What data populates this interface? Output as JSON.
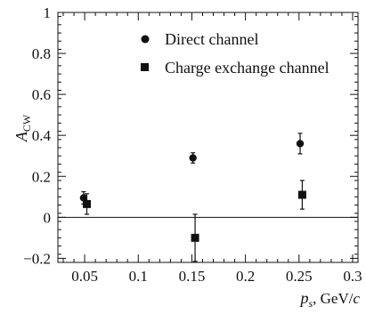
{
  "chart_data": {
    "type": "scatter",
    "xlabel": {
      "symbol": "p",
      "subscript": "s",
      "unit": ", GeV/",
      "unit_italic": "c"
    },
    "ylabel": {
      "symbol": "A",
      "subscript": "CW"
    },
    "xlim": [
      0.025,
      0.305
    ],
    "ylim": [
      -0.22,
      1.0
    ],
    "x_ticks": [
      0.05,
      0.1,
      0.15,
      0.2,
      0.25,
      0.3
    ],
    "x_tick_labels": [
      "0.05",
      "0.1",
      "0.15",
      "0.2",
      "0.25",
      "0.3"
    ],
    "y_ticks": [
      -0.2,
      0,
      0.2,
      0.4,
      0.6,
      0.8,
      1
    ],
    "y_tick_labels": [
      "−0.2",
      "0",
      "0.2",
      "0.4",
      "0.6",
      "0.8",
      "1"
    ],
    "reference_line_y": 0,
    "legend_placement": "top-center",
    "series": [
      {
        "name": "Direct channel",
        "marker": "circle",
        "points": [
          {
            "x": 0.049,
            "y": 0.095,
            "err": 0.03
          },
          {
            "x": 0.151,
            "y": 0.29,
            "err": 0.025
          },
          {
            "x": 0.251,
            "y": 0.36,
            "err": 0.05
          }
        ]
      },
      {
        "name": "Charge exchange channel",
        "marker": "square",
        "points": [
          {
            "x": 0.052,
            "y": 0.065,
            "err": 0.05
          },
          {
            "x": 0.153,
            "y": -0.1,
            "err": 0.115
          },
          {
            "x": 0.253,
            "y": 0.11,
            "err": 0.07
          }
        ]
      }
    ],
    "color": "#111111"
  }
}
